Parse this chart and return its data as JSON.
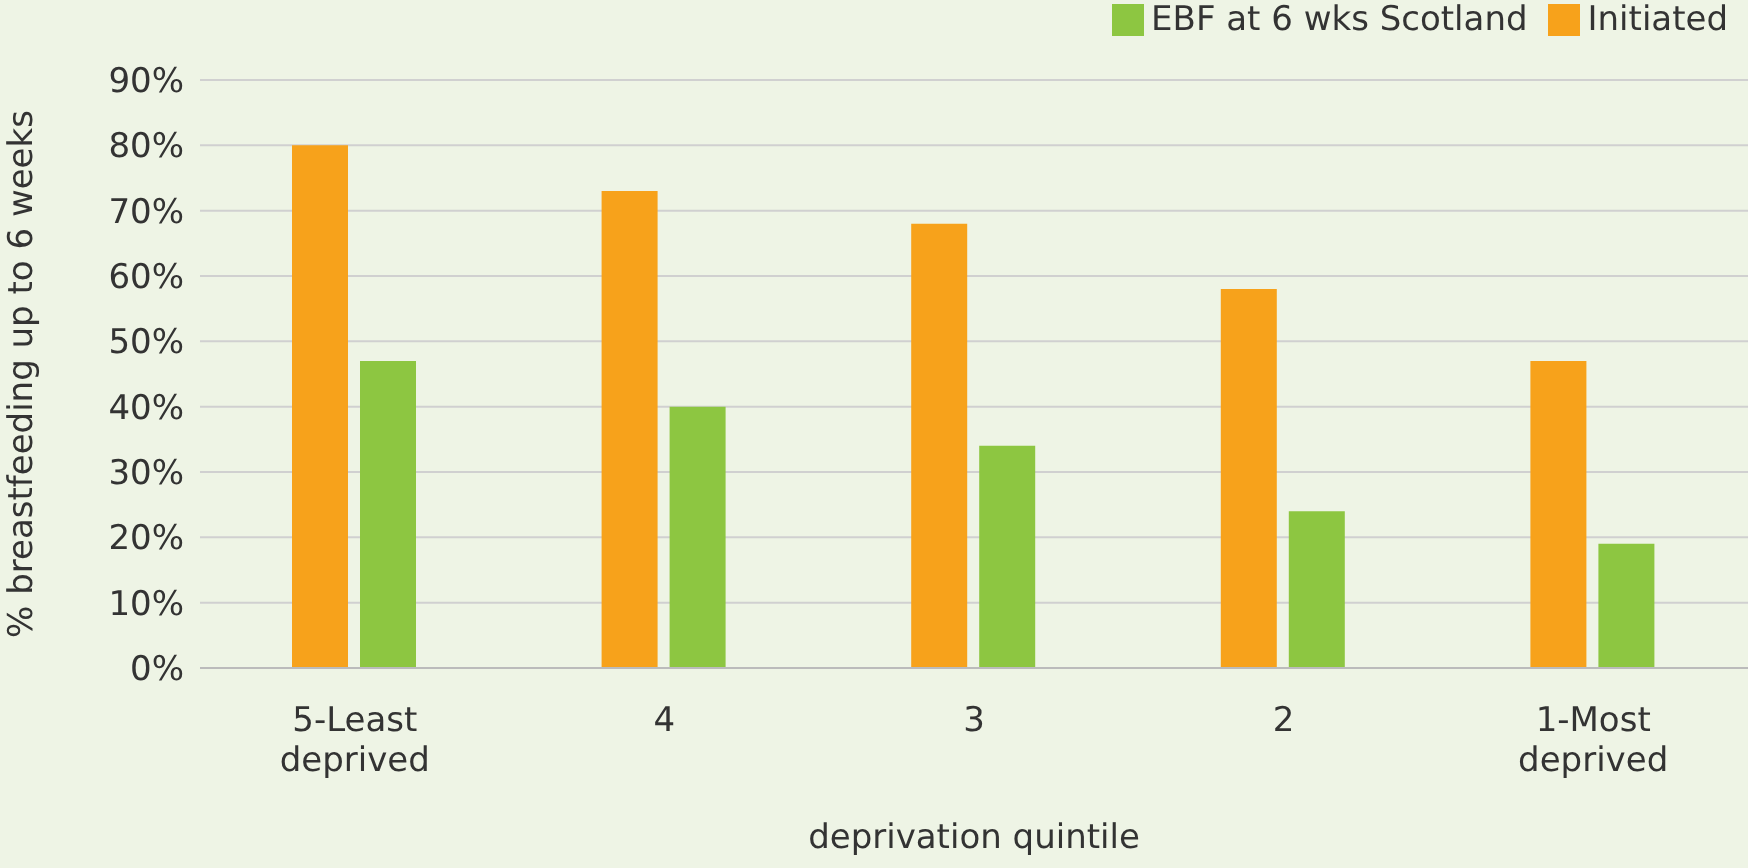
{
  "chart_data": {
    "type": "bar",
    "xlabel": "deprivation quintile",
    "ylabel": "% breastfeeding up to 6 weeks",
    "categories": [
      "5-Least deprived",
      "4",
      "3",
      "2",
      "1-Most deprived"
    ],
    "series": [
      {
        "name": "Initiated",
        "color": "#f7a21b",
        "values": [
          80,
          73,
          68,
          58,
          47
        ]
      },
      {
        "name": "EBF at 6 wks Scotland",
        "color": "#8dc641",
        "values": [
          47,
          40,
          34,
          24,
          19
        ]
      }
    ],
    "ylim": [
      0,
      90
    ],
    "yticks": [
      {
        "value": 0,
        "label": "0%"
      },
      {
        "value": 10,
        "label": "10%"
      },
      {
        "value": 20,
        "label": "20%"
      },
      {
        "value": 30,
        "label": "30%"
      },
      {
        "value": 40,
        "label": "40%"
      },
      {
        "value": 50,
        "label": "50%"
      },
      {
        "value": 60,
        "label": "60%"
      },
      {
        "value": 70,
        "label": "70%"
      },
      {
        "value": 80,
        "label": "80%"
      },
      {
        "value": 90,
        "label": "90%"
      }
    ],
    "grid": "y",
    "legend": "top right"
  }
}
